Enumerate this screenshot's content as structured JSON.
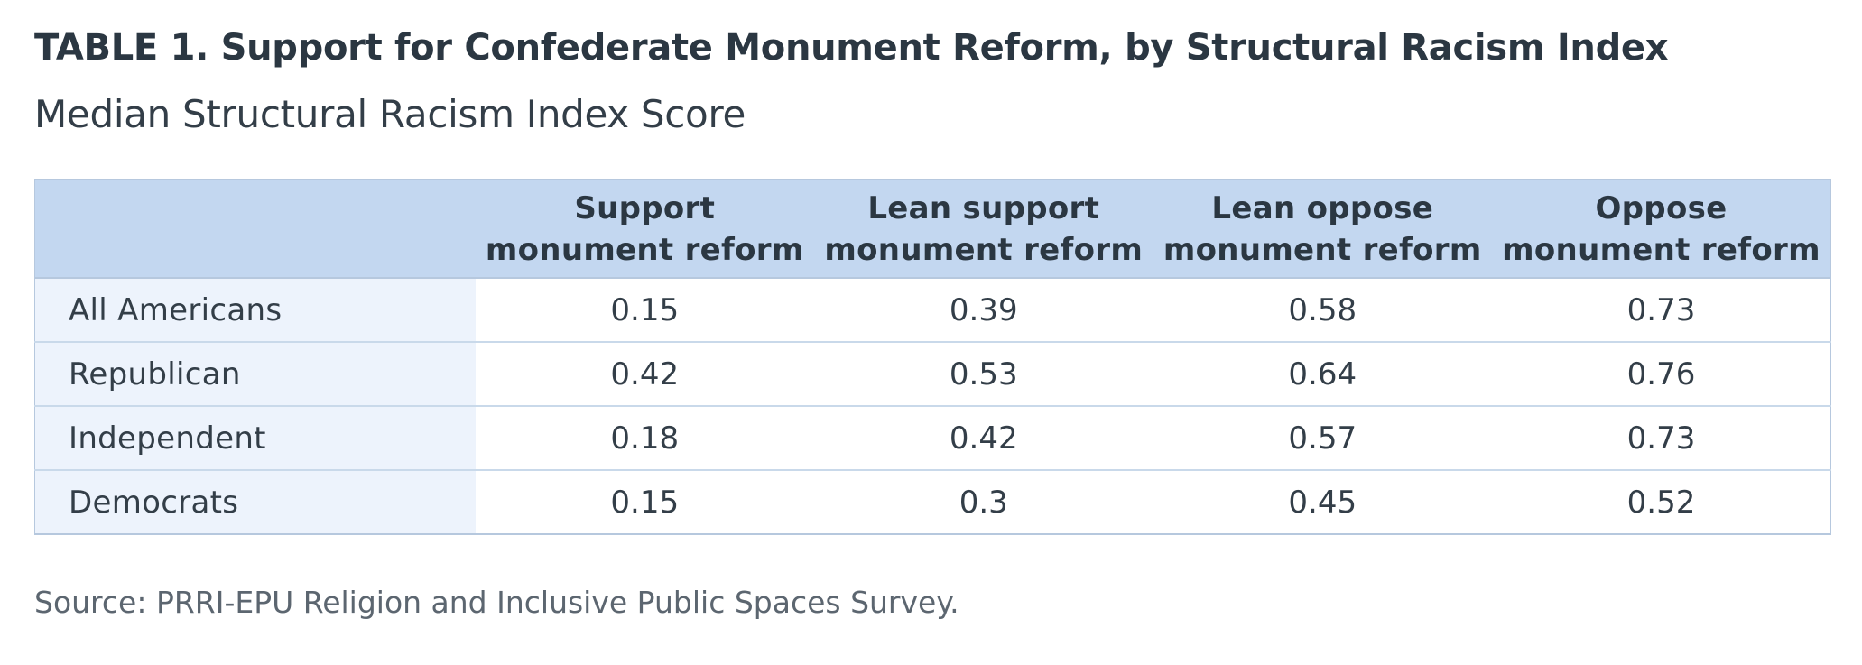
{
  "chart_data": {
    "type": "table",
    "title": "TABLE 1. Support for Confederate Monument Reform, by Structural Racism Index",
    "subtitle": "Median Structural Racism Index Score",
    "columns": [
      [
        "Support",
        "monument reform"
      ],
      [
        "Lean support",
        "monument reform"
      ],
      [
        "Lean oppose",
        "monument reform"
      ],
      [
        "Oppose",
        "monument reform"
      ]
    ],
    "rows": [
      {
        "label": "All Americans",
        "values": [
          "0.15",
          "0.39",
          "0.58",
          "0.73"
        ]
      },
      {
        "label": "Republican",
        "values": [
          "0.42",
          "0.53",
          "0.64",
          "0.76"
        ]
      },
      {
        "label": "Independent",
        "values": [
          "0.18",
          "0.42",
          "0.57",
          "0.73"
        ]
      },
      {
        "label": "Democrats",
        "values": [
          "0.15",
          "0.3",
          "0.45",
          "0.52"
        ]
      }
    ],
    "source": "Source: PRRI-EPU Religion and Inclusive Public Spaces Survey."
  },
  "colors": {
    "header_bg": "#c3d7f0",
    "rowlabel_bg": "#edf3fc",
    "border": "#b6c8de",
    "text": "#333e48"
  }
}
